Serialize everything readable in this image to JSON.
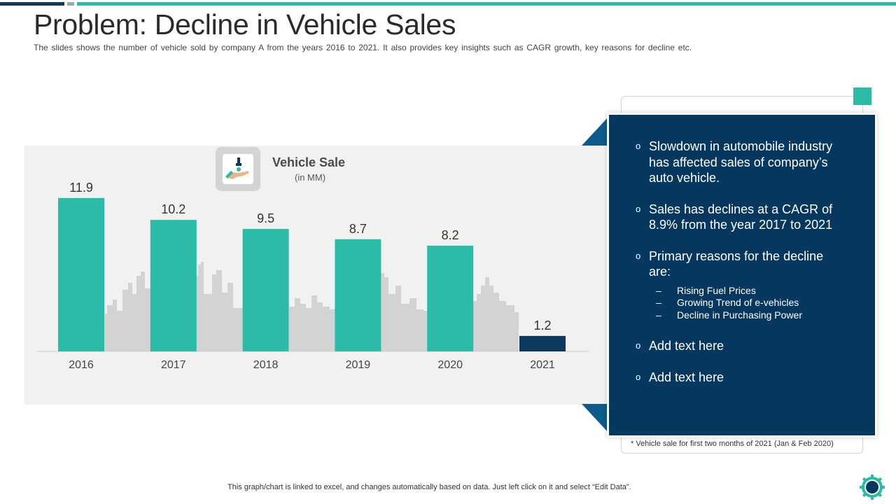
{
  "title": "Problem: Decline in Vehicle Sales",
  "subtitle": "The slides shows the number of vehicle sold by company A from the years 2016 to 2021. It also provides key insights such as CAGR growth, key reasons for decline etc.",
  "legend": {
    "title": "Vehicle Sale",
    "unit": "(in MM)"
  },
  "colors": {
    "teal": "#2bbba7",
    "navy": "#0d3a5c",
    "card": "#06385f",
    "skyline": "#d3d3d3"
  },
  "chart_data": {
    "type": "bar",
    "title": "Vehicle Sale",
    "subtitle": "(in MM)",
    "categories": [
      "2016",
      "2017",
      "2018",
      "2019",
      "2020",
      "2021"
    ],
    "values": [
      11.9,
      10.2,
      9.5,
      8.7,
      8.2,
      1.2
    ],
    "value_labels": [
      "11.9",
      "10.2",
      "9.5",
      "8.7",
      "8.2",
      "1.2"
    ],
    "highlight_index": 5,
    "ylim": [
      0,
      12
    ],
    "grid": false,
    "xlabel": "",
    "ylabel": ""
  },
  "insights": {
    "bullets": [
      {
        "text": "Slowdown in automobile industry has affected sales of company’s auto vehicle."
      },
      {
        "text": "Sales has declines at a CAGR of 8.9% from the year 2017 to 2021"
      },
      {
        "text": "Primary reasons for the decline are:",
        "subs": [
          "Rising Fuel Prices",
          "Growing Trend of e-vehicles",
          "Decline in Purchasing Power"
        ]
      },
      {
        "text": "Add text here"
      },
      {
        "text": "Add text here"
      }
    ],
    "bullet_mark": "o",
    "sub_mark": "–"
  },
  "footnote": "* Vehicle sale for first two months of 2021 (Jan & Feb 2020)",
  "bottom_note": "This graph/chart is linked to excel, and changes automatically based on data. Just left click on it and select “Edit Data”.",
  "icons": {
    "legend": "hand-drop-icon",
    "logo": "gear-logo-icon"
  }
}
